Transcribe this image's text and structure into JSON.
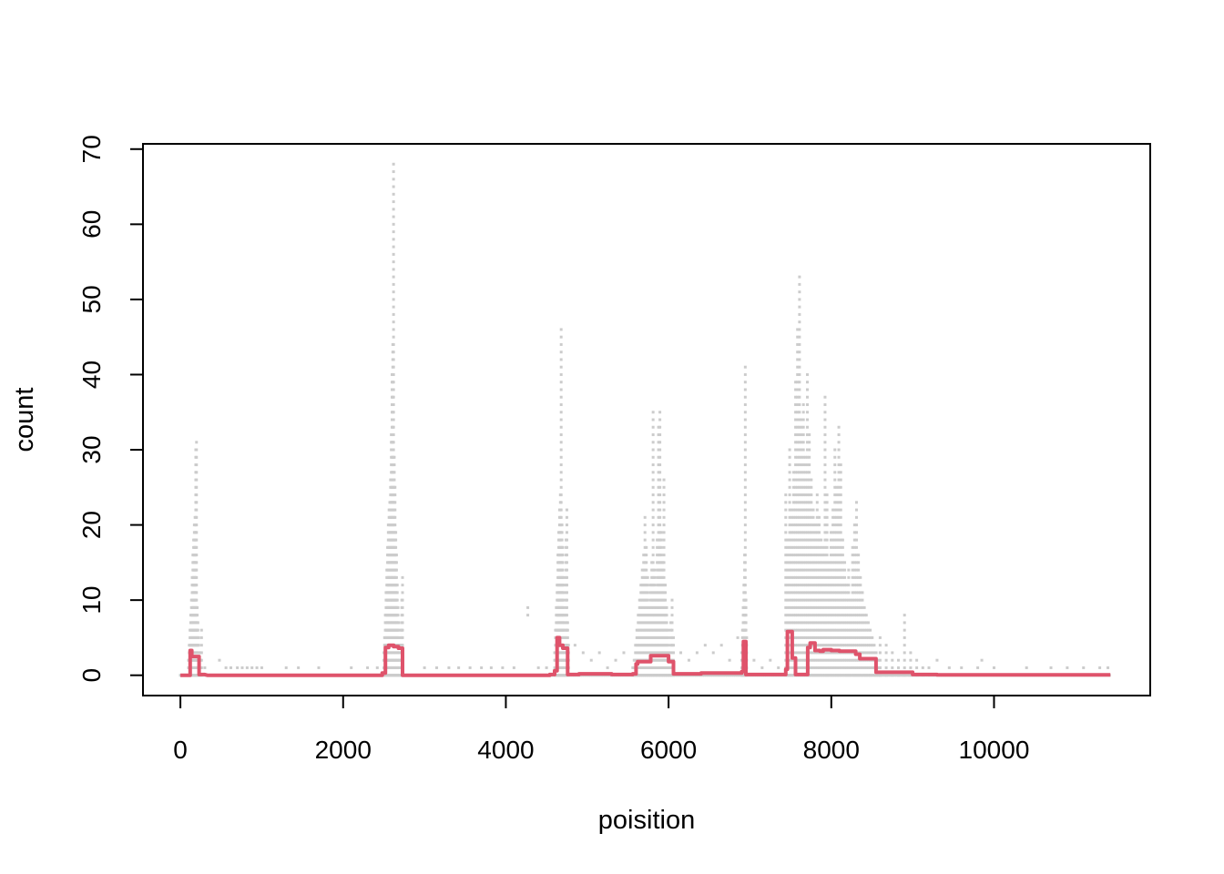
{
  "chart_data": {
    "type": "scatter",
    "title": "",
    "xlabel": "poisition",
    "ylabel": "count",
    "xlim": [
      -460,
      11920
    ],
    "ylim": [
      -2.7,
      70.7
    ],
    "x_ticks": [
      0,
      2000,
      4000,
      6000,
      8000,
      10000
    ],
    "y_ticks": [
      0,
      10,
      20,
      30,
      40,
      50,
      60,
      70
    ],
    "grid": false,
    "legend": "none",
    "colors": {
      "points": "#cccccc",
      "line": "#df536b",
      "axis": "#000000"
    },
    "series": [
      {
        "type": "scatter",
        "clusters": [
          {
            "x_range": [
              100,
              260
            ],
            "counts": [
              2,
              4,
              6,
              8,
              10,
              13,
              16,
              18,
              20,
              21,
              30,
              31,
              9,
              7,
              5,
              3,
              1,
              3,
              6
            ]
          },
          {
            "x_range": [
              2500,
              2730
            ],
            "counts": [
              3,
              5,
              8,
              11,
              14,
              17,
              20,
              22,
              23,
              26,
              32,
              40,
              44,
              68,
              29,
              25,
              19,
              16,
              12,
              9,
              7,
              4,
              2,
              6,
              10,
              13
            ]
          },
          {
            "x_range": [
              4600,
              4770
            ],
            "counts": [
              3,
              6,
              9,
              12,
              16,
              19,
              22,
              24,
              46,
              20,
              17,
              13,
              8,
              5,
              18,
              22,
              7,
              4
            ]
          },
          {
            "x_range": [
              5560,
              6060
            ],
            "counts": [
              1,
              2,
              4,
              6,
              8,
              10,
              12,
              14,
              16,
              21,
              17,
              13,
              9,
              12,
              15,
              35,
              14,
              11,
              18,
              33,
              35,
              19,
              15,
              26,
              12,
              9,
              6,
              3,
              7,
              10,
              5
            ]
          },
          {
            "x_range": [
              6900,
              6960
            ],
            "counts": [
              3,
              6,
              9,
              12,
              16,
              41,
              10,
              5
            ]
          },
          {
            "x_range": [
              7440,
              8600
            ],
            "counts": [
              24,
              18,
              30,
              22,
              27,
              39,
              46,
              53,
              34,
              36,
              29,
              40,
              32,
              26,
              22,
              20,
              24,
              21,
              18,
              17,
              37,
              24,
              15,
              19,
              22,
              30,
              25,
              33,
              28,
              18,
              15,
              12,
              14,
              10,
              17,
              20,
              23,
              16,
              13,
              11,
              9,
              8,
              7,
              6,
              5,
              4,
              3,
              2,
              1
            ]
          },
          {
            "x_range": [
              8600,
              9200
            ],
            "counts": [
              5,
              4,
              3,
              2,
              8,
              3,
              2,
              1,
              1
            ]
          }
        ],
        "sparse_points": [
          [
            300,
            1
          ],
          [
            480,
            2
          ],
          [
            560,
            1
          ],
          [
            620,
            1
          ],
          [
            700,
            1
          ],
          [
            760,
            1
          ],
          [
            820,
            1
          ],
          [
            880,
            1
          ],
          [
            940,
            1
          ],
          [
            1000,
            1
          ],
          [
            1300,
            1
          ],
          [
            1450,
            1
          ],
          [
            1700,
            1
          ],
          [
            2100,
            1
          ],
          [
            2300,
            1
          ],
          [
            2420,
            1
          ],
          [
            3000,
            1
          ],
          [
            3150,
            1
          ],
          [
            3300,
            1
          ],
          [
            3420,
            1
          ],
          [
            3560,
            1
          ],
          [
            3700,
            1
          ],
          [
            3820,
            1
          ],
          [
            3960,
            1
          ],
          [
            4100,
            1
          ],
          [
            4270,
            9
          ],
          [
            4270,
            8
          ],
          [
            4400,
            1
          ],
          [
            4500,
            1
          ],
          [
            4850,
            4
          ],
          [
            4950,
            3
          ],
          [
            5050,
            2
          ],
          [
            5150,
            3
          ],
          [
            5250,
            1
          ],
          [
            5350,
            2
          ],
          [
            5450,
            3
          ],
          [
            6150,
            3
          ],
          [
            6250,
            2
          ],
          [
            6350,
            3
          ],
          [
            6450,
            4
          ],
          [
            6550,
            3
          ],
          [
            6650,
            4
          ],
          [
            6750,
            2
          ],
          [
            6850,
            5
          ],
          [
            7050,
            2
          ],
          [
            7150,
            1
          ],
          [
            7250,
            2
          ],
          [
            7350,
            1
          ],
          [
            9300,
            2
          ],
          [
            9450,
            1
          ],
          [
            9600,
            1
          ],
          [
            9800,
            1
          ],
          [
            9850,
            2
          ],
          [
            10000,
            1
          ],
          [
            10400,
            1
          ],
          [
            10700,
            1
          ],
          [
            10900,
            1
          ],
          [
            11100,
            1
          ],
          [
            11300,
            1
          ],
          [
            11400,
            1
          ]
        ]
      },
      {
        "type": "step",
        "points": [
          [
            0,
            0
          ],
          [
            120,
            0
          ],
          [
            120,
            3.3
          ],
          [
            140,
            3.3
          ],
          [
            140,
            2.5
          ],
          [
            230,
            2.5
          ],
          [
            230,
            0.1
          ],
          [
            300,
            0.1
          ],
          [
            330,
            0
          ],
          [
            2480,
            0
          ],
          [
            2480,
            0.3
          ],
          [
            2520,
            0.3
          ],
          [
            2520,
            3.7
          ],
          [
            2560,
            3.7
          ],
          [
            2560,
            4.0
          ],
          [
            2620,
            4.0
          ],
          [
            2620,
            3.8
          ],
          [
            2680,
            3.8
          ],
          [
            2680,
            3.6
          ],
          [
            2730,
            3.6
          ],
          [
            2730,
            0
          ],
          [
            4540,
            0
          ],
          [
            4540,
            0.1
          ],
          [
            4600,
            0.1
          ],
          [
            4600,
            0.6
          ],
          [
            4630,
            0.6
          ],
          [
            4630,
            5.0
          ],
          [
            4660,
            5.0
          ],
          [
            4660,
            4.0
          ],
          [
            4700,
            4.0
          ],
          [
            4700,
            3.6
          ],
          [
            4760,
            3.6
          ],
          [
            4760,
            0.1
          ],
          [
            4900,
            0.1
          ],
          [
            4900,
            0.2
          ],
          [
            5300,
            0.2
          ],
          [
            5300,
            0.1
          ],
          [
            5560,
            0.1
          ],
          [
            5560,
            0.2
          ],
          [
            5600,
            0.2
          ],
          [
            5600,
            1.5
          ],
          [
            5620,
            1.5
          ],
          [
            5620,
            1.8
          ],
          [
            5780,
            1.8
          ],
          [
            5780,
            2.6
          ],
          [
            6000,
            2.6
          ],
          [
            6000,
            1.8
          ],
          [
            6060,
            1.8
          ],
          [
            6060,
            0.2
          ],
          [
            6400,
            0.2
          ],
          [
            6400,
            0.3
          ],
          [
            6900,
            0.3
          ],
          [
            6900,
            0.5
          ],
          [
            6920,
            0.5
          ],
          [
            6920,
            4.5
          ],
          [
            6950,
            4.5
          ],
          [
            6950,
            0.1
          ],
          [
            7440,
            0.1
          ],
          [
            7440,
            0.8
          ],
          [
            7460,
            0.8
          ],
          [
            7460,
            5.8
          ],
          [
            7520,
            5.8
          ],
          [
            7520,
            2.3
          ],
          [
            7560,
            2.3
          ],
          [
            7560,
            0.1
          ],
          [
            7710,
            0.1
          ],
          [
            7710,
            3.7
          ],
          [
            7740,
            3.7
          ],
          [
            7740,
            4.3
          ],
          [
            7800,
            4.3
          ],
          [
            7800,
            3.3
          ],
          [
            7860,
            3.3
          ],
          [
            7860,
            3.2
          ],
          [
            7900,
            3.2
          ],
          [
            7900,
            3.4
          ],
          [
            8000,
            3.4
          ],
          [
            8000,
            3.3
          ],
          [
            8100,
            3.3
          ],
          [
            8100,
            3.2
          ],
          [
            8300,
            3.2
          ],
          [
            8300,
            2.8
          ],
          [
            8350,
            2.8
          ],
          [
            8350,
            2.2
          ],
          [
            8550,
            2.2
          ],
          [
            8550,
            0.4
          ],
          [
            9000,
            0.4
          ],
          [
            9000,
            0.1
          ],
          [
            9300,
            0.1
          ],
          [
            9300,
            0.05
          ],
          [
            11430,
            0.05
          ]
        ]
      }
    ]
  }
}
